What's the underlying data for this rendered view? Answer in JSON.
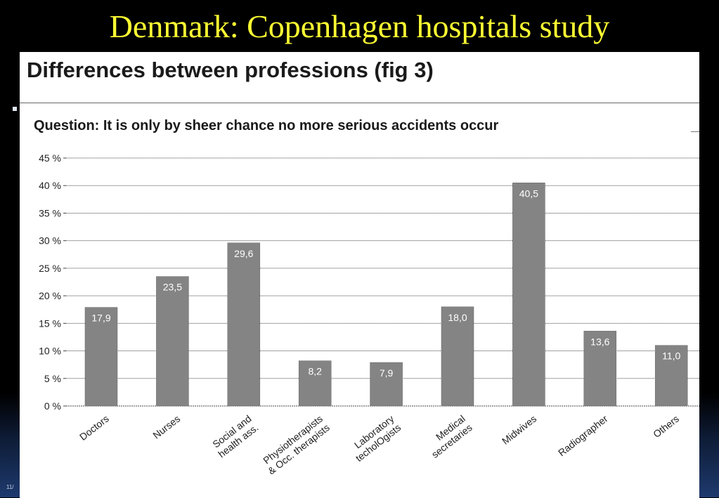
{
  "slide": {
    "title": "Denmark: Copenhagen hospitals study",
    "footer": "11/"
  },
  "panel": {
    "heading": "Differences between professions (fig 3)"
  },
  "chart_data": {
    "type": "bar",
    "title": "Question: It is only by sheer chance no more serious accidents occur",
    "categories": [
      "Doctors",
      "Nurses",
      "Social and\nhealth ass.",
      "Physiotherapists\n& Occ. therapists",
      "Laboratory\ntecholOgists",
      "Medical\nsecretaries",
      "Midwives",
      "Radiographer",
      "Others"
    ],
    "values": [
      17.9,
      23.5,
      29.6,
      8.2,
      7.9,
      18.0,
      40.5,
      13.6,
      11.0
    ],
    "value_labels": [
      "17,9",
      "23,5",
      "29,6",
      "8,2",
      "7,9",
      "18,0",
      "40,5",
      "13,6",
      "11,0"
    ],
    "yticks": [
      "0 %",
      "5 %",
      "10 %",
      "15 %",
      "20 %",
      "25 %",
      "30 %",
      "35 %",
      "40 %",
      "45 %"
    ],
    "ylim": [
      0,
      45
    ],
    "xlabel": "",
    "ylabel": "",
    "grid": true,
    "bar_color": "#8a8a8a"
  }
}
